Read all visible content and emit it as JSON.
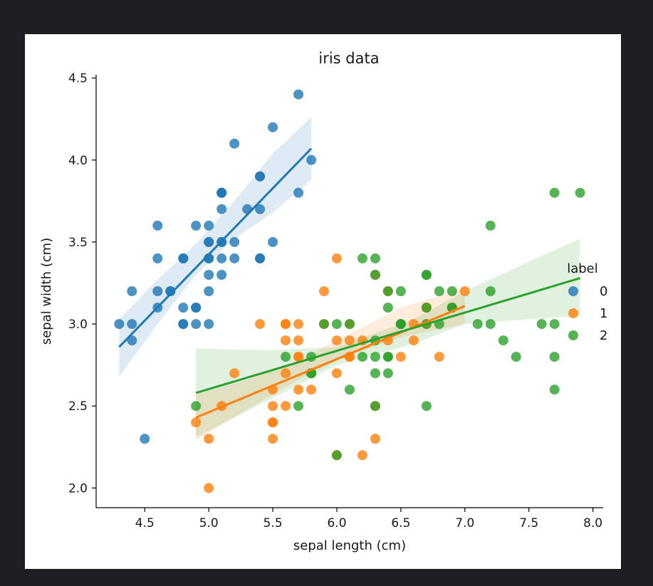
{
  "chart_data": {
    "type": "scatter",
    "title": "iris data",
    "xlabel": "sepal length (cm)",
    "ylabel": "sepal width (cm)",
    "xlim": [
      4.12,
      8.08
    ],
    "ylim": [
      1.88,
      4.52
    ],
    "xticks": [
      4.5,
      5.0,
      5.5,
      6.0,
      6.5,
      7.0,
      7.5,
      8.0
    ],
    "xtick_labels": [
      "4.5",
      "5.0",
      "5.5",
      "6.0",
      "6.5",
      "7.0",
      "7.5",
      "8.0"
    ],
    "yticks": [
      2.0,
      2.5,
      3.0,
      3.5,
      4.0,
      4.5
    ],
    "ytick_labels": [
      "2.0",
      "2.5",
      "3.0",
      "3.5",
      "4.0",
      "4.5"
    ],
    "grid": false,
    "legend": {
      "title": "label",
      "placement": "right"
    },
    "series": [
      {
        "name": "0",
        "color": "#1f77b4",
        "points": [
          [
            5.1,
            3.5
          ],
          [
            4.9,
            3.0
          ],
          [
            4.7,
            3.2
          ],
          [
            4.6,
            3.1
          ],
          [
            5.0,
            3.6
          ],
          [
            5.4,
            3.9
          ],
          [
            4.6,
            3.4
          ],
          [
            5.0,
            3.4
          ],
          [
            4.4,
            2.9
          ],
          [
            4.9,
            3.1
          ],
          [
            5.4,
            3.7
          ],
          [
            4.8,
            3.4
          ],
          [
            4.8,
            3.0
          ],
          [
            4.3,
            3.0
          ],
          [
            5.8,
            4.0
          ],
          [
            5.7,
            4.4
          ],
          [
            5.4,
            3.9
          ],
          [
            5.1,
            3.5
          ],
          [
            5.7,
            3.8
          ],
          [
            5.1,
            3.8
          ],
          [
            5.4,
            3.4
          ],
          [
            5.1,
            3.7
          ],
          [
            4.6,
            3.6
          ],
          [
            5.1,
            3.3
          ],
          [
            4.8,
            3.4
          ],
          [
            5.0,
            3.0
          ],
          [
            5.0,
            3.4
          ],
          [
            5.2,
            3.5
          ],
          [
            5.2,
            3.4
          ],
          [
            4.7,
            3.2
          ],
          [
            4.8,
            3.1
          ],
          [
            5.4,
            3.4
          ],
          [
            5.2,
            4.1
          ],
          [
            5.5,
            4.2
          ],
          [
            4.9,
            3.1
          ],
          [
            5.0,
            3.2
          ],
          [
            5.5,
            3.5
          ],
          [
            4.9,
            3.6
          ],
          [
            4.4,
            3.0
          ],
          [
            5.1,
            3.4
          ],
          [
            5.0,
            3.5
          ],
          [
            4.5,
            2.3
          ],
          [
            4.4,
            3.2
          ],
          [
            5.0,
            3.5
          ],
          [
            5.1,
            3.8
          ],
          [
            4.8,
            3.0
          ],
          [
            5.1,
            3.8
          ],
          [
            4.6,
            3.2
          ],
          [
            5.3,
            3.7
          ],
          [
            5.0,
            3.3
          ]
        ],
        "fit": {
          "x": [
            4.3,
            5.8
          ],
          "y": [
            2.86,
            4.07
          ]
        },
        "band": {
          "x": [
            4.3,
            4.6,
            4.9,
            5.2,
            5.5,
            5.8
          ],
          "lower": [
            2.68,
            3.0,
            3.3,
            3.52,
            3.68,
            3.88
          ],
          "upper": [
            3.03,
            3.27,
            3.49,
            3.75,
            4.04,
            4.26
          ]
        }
      },
      {
        "name": "1",
        "color": "#ff7f0e",
        "points": [
          [
            7.0,
            3.2
          ],
          [
            6.4,
            3.2
          ],
          [
            6.9,
            3.1
          ],
          [
            5.5,
            2.3
          ],
          [
            6.5,
            2.8
          ],
          [
            5.7,
            2.8
          ],
          [
            6.3,
            3.3
          ],
          [
            4.9,
            2.4
          ],
          [
            6.6,
            2.9
          ],
          [
            5.2,
            2.7
          ],
          [
            5.0,
            2.0
          ],
          [
            5.9,
            3.0
          ],
          [
            6.0,
            2.2
          ],
          [
            6.1,
            2.9
          ],
          [
            5.6,
            2.9
          ],
          [
            6.7,
            3.1
          ],
          [
            5.6,
            3.0
          ],
          [
            5.8,
            2.7
          ],
          [
            6.2,
            2.2
          ],
          [
            5.6,
            2.5
          ],
          [
            5.9,
            3.2
          ],
          [
            6.1,
            2.8
          ],
          [
            6.3,
            2.5
          ],
          [
            6.1,
            2.8
          ],
          [
            6.4,
            2.9
          ],
          [
            6.6,
            3.0
          ],
          [
            6.8,
            2.8
          ],
          [
            6.7,
            3.0
          ],
          [
            6.0,
            2.9
          ],
          [
            5.7,
            2.6
          ],
          [
            5.5,
            2.4
          ],
          [
            5.5,
            2.4
          ],
          [
            5.8,
            2.7
          ],
          [
            6.0,
            2.7
          ],
          [
            5.4,
            3.0
          ],
          [
            6.0,
            3.4
          ],
          [
            6.7,
            3.1
          ],
          [
            6.3,
            2.3
          ],
          [
            5.6,
            3.0
          ],
          [
            5.5,
            2.5
          ],
          [
            5.5,
            2.6
          ],
          [
            6.1,
            3.0
          ],
          [
            5.8,
            2.6
          ],
          [
            5.0,
            2.3
          ],
          [
            5.6,
            2.7
          ],
          [
            5.7,
            3.0
          ],
          [
            5.7,
            2.9
          ],
          [
            6.2,
            2.9
          ],
          [
            5.1,
            2.5
          ],
          [
            5.7,
            2.8
          ]
        ],
        "fit": {
          "x": [
            4.9,
            7.0
          ],
          "y": [
            2.43,
            3.11
          ]
        },
        "band": {
          "x": [
            4.9,
            5.3,
            5.7,
            6.1,
            6.5,
            7.0
          ],
          "lower": [
            2.29,
            2.48,
            2.66,
            2.81,
            2.92,
            3.0
          ],
          "upper": [
            2.57,
            2.66,
            2.78,
            2.94,
            3.1,
            3.22
          ]
        }
      },
      {
        "name": "2",
        "color": "#2ca02c",
        "points": [
          [
            6.3,
            3.3
          ],
          [
            5.8,
            2.7
          ],
          [
            7.1,
            3.0
          ],
          [
            6.3,
            2.9
          ],
          [
            6.5,
            3.0
          ],
          [
            7.6,
            3.0
          ],
          [
            4.9,
            2.5
          ],
          [
            7.3,
            2.9
          ],
          [
            6.7,
            2.5
          ],
          [
            7.2,
            3.6
          ],
          [
            6.5,
            3.2
          ],
          [
            6.4,
            2.7
          ],
          [
            6.8,
            3.0
          ],
          [
            5.7,
            2.5
          ],
          [
            5.8,
            2.8
          ],
          [
            6.4,
            3.2
          ],
          [
            6.5,
            3.0
          ],
          [
            7.7,
            3.8
          ],
          [
            7.7,
            2.6
          ],
          [
            6.0,
            2.2
          ],
          [
            6.9,
            3.2
          ],
          [
            5.6,
            2.8
          ],
          [
            7.7,
            2.8
          ],
          [
            6.3,
            2.7
          ],
          [
            6.7,
            3.3
          ],
          [
            7.2,
            3.2
          ],
          [
            6.2,
            2.8
          ],
          [
            6.1,
            3.0
          ],
          [
            6.4,
            2.8
          ],
          [
            7.2,
            3.0
          ],
          [
            7.4,
            2.8
          ],
          [
            7.9,
            3.8
          ],
          [
            6.4,
            2.8
          ],
          [
            6.3,
            2.8
          ],
          [
            6.1,
            2.6
          ],
          [
            7.7,
            3.0
          ],
          [
            6.3,
            3.4
          ],
          [
            6.4,
            3.1
          ],
          [
            6.0,
            3.0
          ],
          [
            6.9,
            3.1
          ],
          [
            6.7,
            3.1
          ],
          [
            6.9,
            3.1
          ],
          [
            5.8,
            2.7
          ],
          [
            6.8,
            3.2
          ],
          [
            6.7,
            3.3
          ],
          [
            6.7,
            3.0
          ],
          [
            6.3,
            2.5
          ],
          [
            6.5,
            3.0
          ],
          [
            6.2,
            3.4
          ],
          [
            5.9,
            3.0
          ]
        ],
        "fit": {
          "x": [
            4.9,
            7.9
          ],
          "y": [
            2.58,
            3.28
          ]
        },
        "band": {
          "x": [
            4.9,
            5.5,
            6.0,
            6.6,
            7.0,
            7.5,
            7.9
          ],
          "lower": [
            2.31,
            2.55,
            2.75,
            2.88,
            3.0,
            3.03,
            3.05
          ],
          "upper": [
            2.85,
            2.84,
            2.86,
            3.03,
            3.2,
            3.38,
            3.52
          ]
        }
      }
    ]
  }
}
